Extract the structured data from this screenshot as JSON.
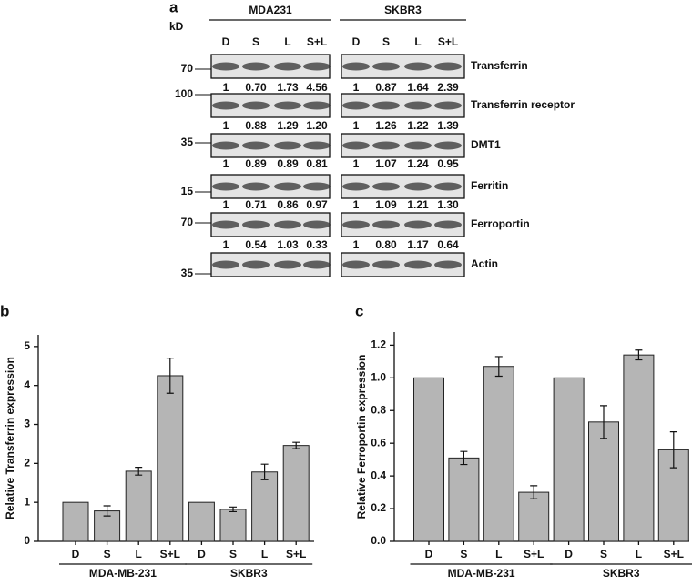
{
  "blot": {
    "panel": "a",
    "unit": "kD",
    "groups": [
      "MDA231",
      "SKBR3"
    ],
    "lanes": [
      "D",
      "S",
      "L",
      "S+L"
    ],
    "rows": [
      {
        "protein": "Transferrin",
        "marker": "70",
        "quant": [
          [
            "1",
            "0.70",
            "1.73",
            "4.56"
          ],
          [
            "1",
            "0.87",
            "1.64",
            "2.39"
          ]
        ]
      },
      {
        "protein": "Transferrin receptor",
        "marker": "100",
        "quant": [
          [
            "1",
            "0.88",
            "1.29",
            "1.20"
          ],
          [
            "1",
            "1.26",
            "1.22",
            "1.39"
          ]
        ]
      },
      {
        "protein": "DMT1",
        "marker": "35",
        "quant": [
          [
            "1",
            "0.89",
            "0.89",
            "0.81"
          ],
          [
            "1",
            "1.07",
            "1.24",
            "0.95"
          ]
        ]
      },
      {
        "protein": "Ferritin",
        "marker": "15",
        "quant": [
          [
            "1",
            "0.71",
            "0.86",
            "0.97"
          ],
          [
            "1",
            "1.09",
            "1.21",
            "1.30"
          ]
        ]
      },
      {
        "protein": "Ferroportin",
        "marker": "70",
        "quant": [
          [
            "1",
            "0.54",
            "1.03",
            "0.33"
          ],
          [
            "1",
            "0.80",
            "1.17",
            "0.64"
          ]
        ]
      },
      {
        "protein": "Actin",
        "marker": "35"
      }
    ]
  },
  "chart_data": [
    {
      "type": "bar",
      "panel": "b",
      "ylabel": "Relative Transferrin expression",
      "categories": [
        "D",
        "S",
        "L",
        "S+L",
        "D",
        "S",
        "L",
        "S+L"
      ],
      "groups": [
        "MDA-MB-231",
        "SKBR3"
      ],
      "values": [
        1,
        0.78,
        1.8,
        4.25,
        1,
        0.82,
        1.78,
        2.46
      ],
      "errors": [
        null,
        0.13,
        0.1,
        0.45,
        null,
        0.06,
        0.2,
        0.08
      ],
      "color": "#b5b5b5",
      "ylim": [
        0,
        5.3
      ],
      "yticks": [
        0,
        1,
        2,
        3,
        4,
        5
      ]
    },
    {
      "type": "bar",
      "panel": "c",
      "ylabel": "Relative Ferroportin expression",
      "categories": [
        "D",
        "S",
        "L",
        "S+L",
        "D",
        "S",
        "L",
        "S+L"
      ],
      "groups": [
        "MDA-MB-231",
        "SKBR3"
      ],
      "values": [
        1,
        0.51,
        1.07,
        0.3,
        1,
        0.73,
        1.14,
        0.56
      ],
      "errors": [
        null,
        0.04,
        0.06,
        0.04,
        null,
        0.1,
        0.03,
        0.11
      ],
      "color": "#b5b5b5",
      "ylim": [
        0,
        1.28
      ],
      "yticks": [
        {
          "value": 0,
          "label": "0.0"
        },
        0.2,
        0.4,
        0.6,
        0.8,
        {
          "value": 1,
          "label": "1.0"
        },
        1.2
      ]
    }
  ]
}
